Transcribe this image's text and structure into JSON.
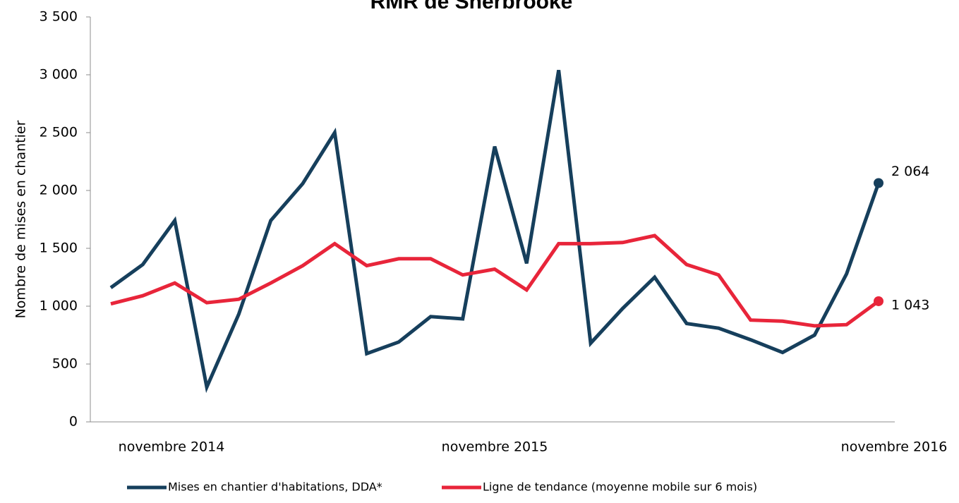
{
  "chart_data": {
    "type": "line",
    "title": "RMR de Sherbrooke",
    "ylabel": "Nombre de mises en chantier",
    "ylim": [
      0,
      3500
    ],
    "yticks": [
      0,
      500,
      1000,
      1500,
      2000,
      2500,
      3000,
      3500
    ],
    "ytick_labels": [
      "0",
      "500",
      "1 000",
      "1 500",
      "2 000",
      "2 500",
      "3 000",
      "3 500"
    ],
    "x_tick_labels": [
      {
        "index": 0,
        "label": "novembre 2014"
      },
      {
        "index": 12,
        "label": "novembre 2015"
      },
      {
        "index": 24,
        "label": "novembre 2016"
      }
    ],
    "grid": false,
    "legend_position": "bottom",
    "series": [
      {
        "name": "Mises en chantier d'habitations, DDA*",
        "color": "#163f5c",
        "values": [
          1160,
          1360,
          1740,
          300,
          930,
          1740,
          2060,
          2500,
          590,
          690,
          910,
          890,
          2380,
          1370,
          3040,
          680,
          980,
          1250,
          850,
          810,
          710,
          600,
          750,
          1280,
          2064
        ],
        "end_label": "2 064"
      },
      {
        "name": "Ligne de tendance (moyenne mobile sur 6 mois)",
        "color": "#e8253a",
        "values": [
          1020,
          1090,
          1200,
          1030,
          1060,
          1200,
          1350,
          1540,
          1350,
          1410,
          1410,
          1270,
          1320,
          1140,
          1540,
          1540,
          1550,
          1610,
          1360,
          1270,
          880,
          870,
          830,
          840,
          1043
        ],
        "end_label": "1 043"
      }
    ]
  }
}
